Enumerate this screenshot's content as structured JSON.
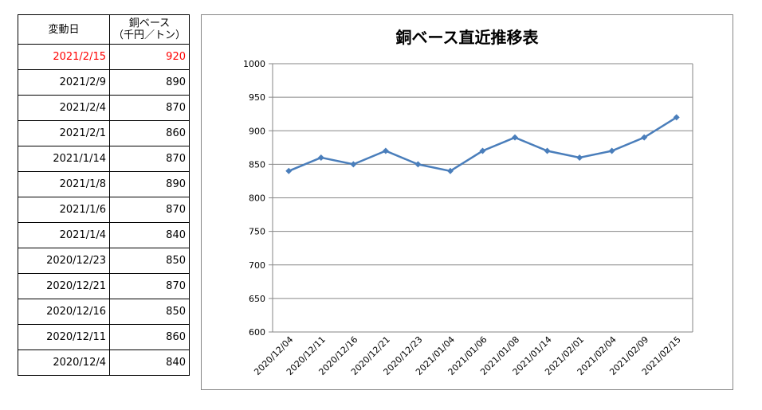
{
  "table": {
    "header": {
      "date_label": "変動日",
      "price_label_line1": "銅ベース",
      "price_label_line2": "（千円／トン）"
    },
    "rows": [
      {
        "date": "2021/2/15",
        "price": "920",
        "highlight": true
      },
      {
        "date": "2021/2/9",
        "price": "890"
      },
      {
        "date": "2021/2/4",
        "price": "870"
      },
      {
        "date": "2021/2/1",
        "price": "860"
      },
      {
        "date": "2021/1/14",
        "price": "870"
      },
      {
        "date": "2021/1/8",
        "price": "890"
      },
      {
        "date": "2021/1/6",
        "price": "870"
      },
      {
        "date": "2021/1/4",
        "price": "840"
      },
      {
        "date": "2020/12/23",
        "price": "850"
      },
      {
        "date": "2020/12/21",
        "price": "870"
      },
      {
        "date": "2020/12/16",
        "price": "850"
      },
      {
        "date": "2020/12/11",
        "price": "860"
      },
      {
        "date": "2020/12/4",
        "price": "840"
      }
    ],
    "highlight_color": "#ff0000"
  },
  "chart_data": {
    "type": "line",
    "title": "銅ベース直近推移表",
    "categories": [
      "2020/12/04",
      "2020/12/11",
      "2020/12/16",
      "2020/12/21",
      "2020/12/23",
      "2021/01/04",
      "2021/01/06",
      "2021/01/08",
      "2021/01/14",
      "2021/02/01",
      "2021/02/04",
      "2021/02/09",
      "2021/02/15"
    ],
    "series": [
      {
        "values": [
          840,
          860,
          850,
          870,
          850,
          840,
          870,
          890,
          870,
          860,
          870,
          890,
          920
        ],
        "color": "#4a7ebb",
        "marker": "diamond"
      }
    ],
    "ylim": [
      600,
      1000
    ],
    "yticks": [
      600,
      650,
      700,
      750,
      800,
      850,
      900,
      950,
      1000
    ],
    "grid": true,
    "legend": "none"
  }
}
